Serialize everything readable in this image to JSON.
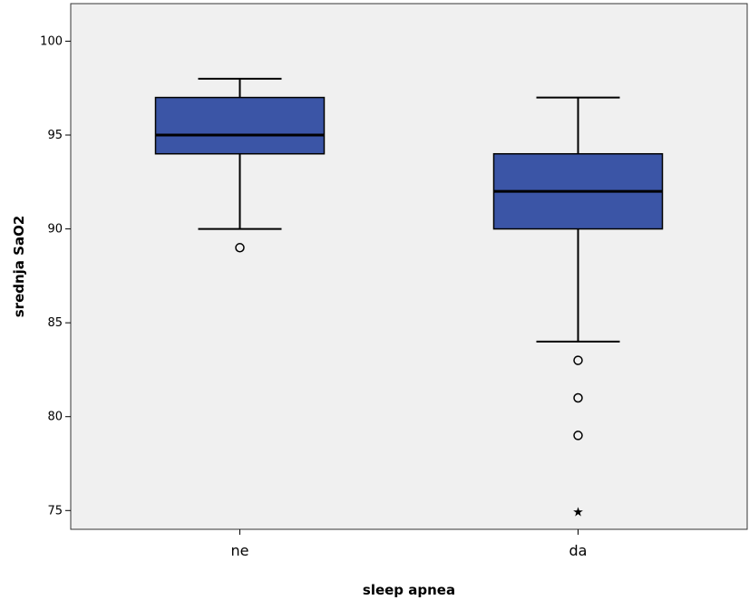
{
  "chart_data": {
    "type": "boxplot",
    "title": "",
    "xlabel": "sleep apnea",
    "ylabel": "srednja SaO2",
    "ylim": [
      74,
      102
    ],
    "yticks": [
      75,
      80,
      85,
      90,
      95,
      100
    ],
    "categories": [
      "ne",
      "da"
    ],
    "grid": false,
    "colors": {
      "box_fill": "#3b55a6",
      "plot_bg": "#f0f0f0",
      "stroke": "#000000"
    },
    "boxes": [
      {
        "category": "ne",
        "whisker_low": 90,
        "q1": 94,
        "median": 95,
        "q3": 97,
        "whisker_high": 98,
        "outliers": [
          89
        ],
        "extremes": []
      },
      {
        "category": "da",
        "whisker_low": 84,
        "q1": 90,
        "median": 92,
        "q3": 94,
        "whisker_high": 97,
        "outliers": [
          83,
          81,
          79
        ],
        "extremes": [
          75
        ]
      }
    ]
  }
}
